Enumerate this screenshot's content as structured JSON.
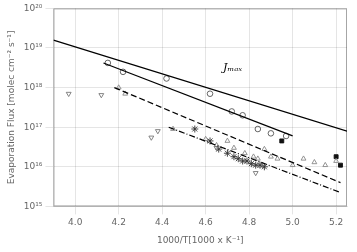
{
  "chart_data": {
    "type": "scatter",
    "xlabel": "1000/T[1000 x K⁻¹]",
    "ylabel": "Evaporation Flux [molec cm⁻² s⁻¹]",
    "log": "y",
    "grid": true,
    "xlim": [
      3.9,
      5.25
    ],
    "xticks": [
      {
        "value": 4.0,
        "label": "4.0"
      },
      4.2,
      4.4,
      4.6,
      4.8,
      {
        "value": 5.0,
        "label": "5.0"
      },
      5.2
    ],
    "ylim": [
      1000000000000000.0,
      1e+20
    ],
    "yticks": [
      {
        "value": 1000000000000000.0,
        "label": "10¹⁵"
      },
      {
        "value": 1e+16,
        "label": "10¹⁶"
      },
      {
        "value": 1e+17,
        "label": "10¹⁷"
      },
      {
        "value": 1e+18,
        "label": "10¹⁸"
      },
      {
        "value": 1e+19,
        "label": "10¹⁹"
      },
      {
        "value": 1e+20,
        "label": "10²⁰"
      }
    ],
    "series": [
      {
        "type": "line",
        "line_style": "solid",
        "color": "#000000",
        "x": [
          3.9,
          5.25
        ],
        "values": [
          1.5848931924611135e+19,
          7.943282347242814e+16
        ]
      },
      {
        "type": "line",
        "line_style": "solid",
        "color": "#000000",
        "x": [
          4.13,
          5.0
        ],
        "values": [
          4.168693834703354e+18,
          6.025595860743578e+16
        ]
      },
      {
        "type": "line",
        "line_style": "dashed",
        "color": "#000000",
        "x": [
          4.18,
          5.22
        ],
        "values": [
          1e+18,
          3981071705534972.0
        ]
      },
      {
        "type": "line",
        "line_style": "dashdot",
        "color": "#000000",
        "x": [
          4.43,
          5.22
        ],
        "values": [
          1e+17,
          2238721138568339.5
        ]
      },
      {
        "type": "scatter",
        "marker": "circle",
        "color": "#555555",
        "x": [
          4.15,
          4.22,
          4.42,
          4.62,
          4.72,
          4.77,
          4.84,
          4.9,
          4.97
        ],
        "values": [
          4.2e+18,
          2.5e+18,
          1.7e+18,
          7e+17,
          2.5e+17,
          2e+17,
          9e+16,
          7e+16,
          6e+16
        ]
      },
      {
        "type": "scatter",
        "marker": "triangle_down",
        "color": "#777777",
        "x": [
          3.97,
          4.12,
          4.35,
          4.38,
          4.65,
          4.83,
          4.85
        ],
        "values": [
          7e+17,
          6.5e+17,
          5.5e+16,
          8e+16,
          3e+16,
          7000000000000000.0,
          1.1e+16
        ]
      },
      {
        "type": "scatter",
        "marker": "triangle_up",
        "color": "#888888",
        "x": [
          4.2,
          4.23,
          4.45,
          4.6,
          4.65,
          4.7,
          4.73,
          4.78,
          4.82,
          4.84,
          4.87,
          4.9,
          4.93,
          5.0,
          5.05,
          5.1,
          5.15,
          5.2
        ],
        "values": [
          1e+18,
          7e+17,
          9e+16,
          5e+16,
          3.5e+16,
          4.5e+16,
          3e+16,
          2.2e+16,
          1.8e+16,
          1.6e+16,
          2.8e+16,
          1.8e+16,
          1.6e+16,
          1.1e+16,
          1.6e+16,
          1.3e+16,
          1.1e+16,
          1.4e+16
        ]
      },
      {
        "type": "scatter",
        "marker": "star",
        "color": "#333333",
        "x": [
          4.55,
          4.62,
          4.66,
          4.7,
          4.73,
          4.75,
          4.77,
          4.79,
          4.81,
          4.83,
          4.85,
          4.87
        ],
        "values": [
          9e+16,
          4.5e+16,
          2.8e+16,
          2.2e+16,
          1.8e+16,
          1.6e+16,
          1.4e+16,
          1.4e+16,
          1.2e+16,
          1.1e+16,
          1.1e+16,
          1e+16
        ]
      },
      {
        "type": "scatter",
        "marker": "square",
        "color": "#111111",
        "x": [
          4.95,
          5.2,
          5.22
        ],
        "values": [
          4.5e+16,
          1.8e+16,
          1.1e+16
        ]
      }
    ],
    "annotations": [
      {
        "text": "Jₘₐₓ",
        "x": 4.68,
        "y": 2.6302679918953815e+18
      }
    ]
  }
}
